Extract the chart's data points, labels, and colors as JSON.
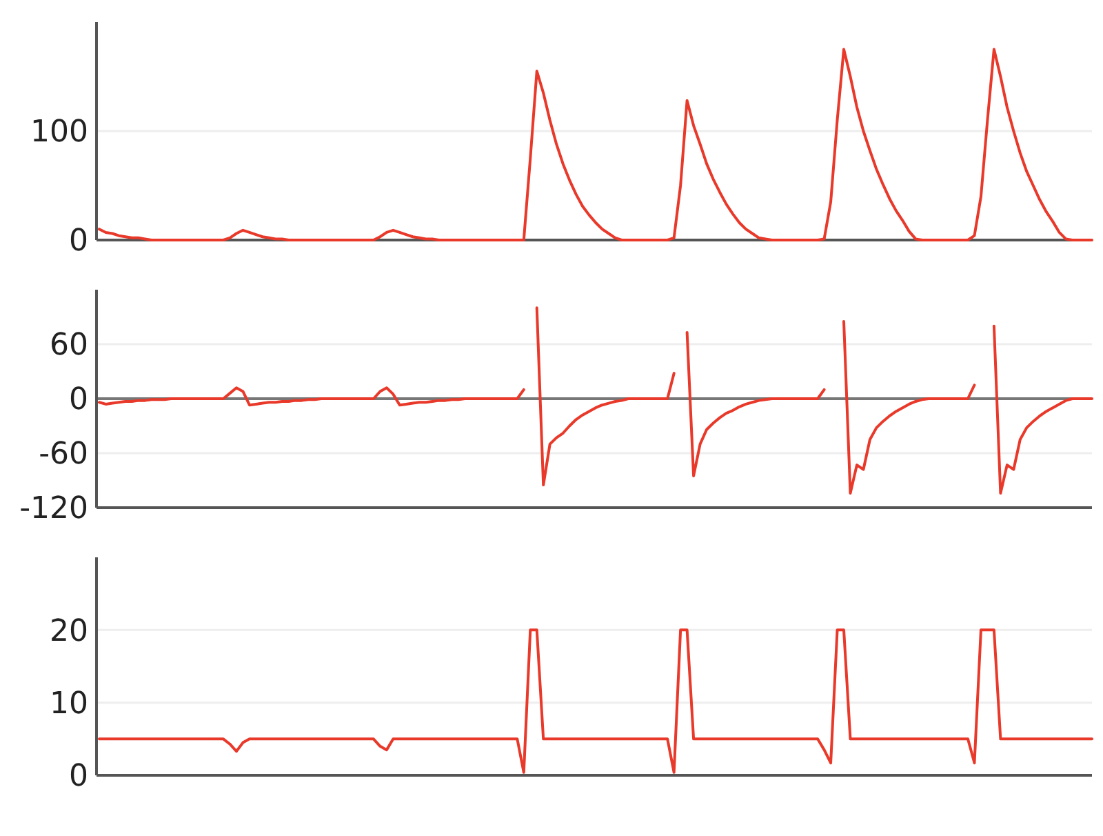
{
  "chart_data": [
    {
      "type": "line",
      "categories": [
        null,
        null,
        null,
        null,
        null,
        null,
        null,
        null,
        null,
        null,
        null,
        null,
        null,
        null,
        null,
        null,
        null,
        null,
        null,
        null,
        null,
        null,
        null,
        null,
        null,
        null,
        null,
        null,
        null,
        null,
        null,
        null,
        null,
        null,
        null,
        null,
        null,
        null,
        null,
        null,
        null,
        null,
        null,
        null,
        null,
        null,
        null,
        null,
        null,
        null,
        null,
        null,
        null,
        null,
        null,
        null,
        null,
        null,
        null,
        null,
        null,
        null,
        null,
        null,
        null,
        null,
        null,
        null,
        null,
        null,
        null,
        null,
        null,
        null,
        null,
        null,
        null,
        null,
        null,
        null,
        null,
        null,
        null,
        null,
        null,
        null,
        null,
        null,
        null,
        null,
        null,
        null,
        null,
        null,
        null,
        null,
        null,
        null,
        null,
        null,
        null,
        null,
        null,
        null,
        null,
        null,
        null,
        null,
        null,
        null,
        null,
        null,
        null,
        null,
        null,
        null,
        null,
        null,
        null,
        null,
        null,
        null,
        null,
        null,
        null,
        null,
        null,
        null,
        null,
        null,
        null,
        null,
        null,
        null,
        null,
        null,
        null,
        null,
        null,
        null,
        null,
        null,
        null,
        null,
        null,
        null,
        null,
        null,
        null,
        null,
        null,
        null,
        null
      ],
      "ylim": [
        0,
        200
      ],
      "yticks": [
        0,
        100
      ],
      "grid": "y",
      "series": [
        {
          "color": "#e8392a",
          "values": [
            10,
            7,
            6,
            4,
            3,
            2,
            2,
            1,
            0,
            0,
            0,
            0,
            0,
            0,
            0,
            0,
            0,
            0,
            0,
            0,
            2,
            6,
            9,
            7,
            5,
            3,
            2,
            1,
            1,
            0,
            0,
            0,
            0,
            0,
            0,
            0,
            0,
            0,
            0,
            0,
            0,
            0,
            0,
            3,
            7,
            9,
            7,
            5,
            3,
            2,
            1,
            1,
            0,
            0,
            0,
            0,
            0,
            0,
            0,
            0,
            0,
            0,
            0,
            0,
            0,
            0,
            75,
            155,
            135,
            110,
            88,
            70,
            55,
            42,
            31,
            23,
            16,
            10,
            6,
            2,
            0,
            0,
            0,
            0,
            0,
            0,
            0,
            0,
            2,
            50,
            128,
            105,
            88,
            70,
            56,
            44,
            33,
            24,
            16,
            10,
            6,
            2,
            1,
            0,
            0,
            0,
            0,
            0,
            0,
            0,
            0,
            1,
            35,
            110,
            175,
            150,
            122,
            100,
            82,
            65,
            51,
            38,
            27,
            18,
            8,
            1,
            0,
            0,
            0,
            0,
            0,
            0,
            0,
            0,
            4,
            40,
            110,
            175,
            150,
            122,
            100,
            80,
            63,
            50,
            37,
            26,
            17,
            7,
            1,
            0,
            0,
            0,
            0
          ]
        }
      ]
    },
    {
      "type": "line",
      "categories": [
        null,
        null,
        null,
        null,
        null,
        null,
        null,
        null,
        null,
        null,
        null,
        null,
        null,
        null,
        null,
        null,
        null,
        null,
        null,
        null,
        null,
        null,
        null,
        null,
        null,
        null,
        null,
        null,
        null,
        null,
        null,
        null,
        null,
        null,
        null,
        null,
        null,
        null,
        null,
        null,
        null,
        null,
        null,
        null,
        null,
        null,
        null,
        null,
        null,
        null,
        null,
        null,
        null,
        null,
        null,
        null,
        null,
        null,
        null,
        null,
        null,
        null,
        null,
        null,
        null,
        null,
        null,
        null,
        null,
        null,
        null,
        null,
        null,
        null,
        null,
        null,
        null,
        null,
        null,
        null,
        null,
        null,
        null,
        null,
        null,
        null,
        null,
        null,
        null,
        null,
        null,
        null,
        null,
        null,
        null,
        null,
        null,
        null,
        null,
        null,
        null,
        null,
        null,
        null,
        null,
        null,
        null,
        null,
        null,
        null,
        null,
        null,
        null,
        null,
        null,
        null,
        null,
        null,
        null,
        null,
        null,
        null,
        null,
        null,
        null,
        null,
        null,
        null,
        null,
        null,
        null,
        null,
        null,
        null,
        null,
        null,
        null,
        null,
        null,
        null,
        null,
        null,
        null,
        null,
        null,
        null,
        null,
        null,
        null,
        null,
        null,
        null,
        null
      ],
      "ylim": [
        -120,
        120
      ],
      "yticks": [
        -120,
        -60,
        0,
        60
      ],
      "grid": "y",
      "ref_lines": [
        {
          "axis": "y",
          "value": 0,
          "color": "#777777"
        }
      ],
      "series": [
        {
          "color": "#e8392a",
          "values": [
            -4,
            -6,
            -5,
            -4,
            -3,
            -3,
            -2,
            -2,
            -1,
            -1,
            -1,
            0,
            0,
            0,
            0,
            0,
            0,
            0,
            0,
            0,
            6,
            12,
            8,
            -7,
            -6,
            -5,
            -4,
            -4,
            -3,
            -3,
            -2,
            -2,
            -1,
            -1,
            0,
            0,
            0,
            0,
            0,
            0,
            0,
            0,
            0,
            8,
            12,
            5,
            -7,
            -6,
            -5,
            -4,
            -4,
            -3,
            -2,
            -2,
            -1,
            -1,
            0,
            0,
            0,
            0,
            0,
            0,
            0,
            0,
            0,
            10,
            null,
            100,
            -95,
            -50,
            -43,
            -38,
            -30,
            -23,
            -18,
            -14,
            -10,
            -7,
            -5,
            -3,
            -2,
            0,
            0,
            0,
            0,
            0,
            0,
            0,
            28,
            null,
            73,
            -85,
            -50,
            -34,
            -27,
            -21,
            -16,
            -13,
            -9,
            -6,
            -4,
            -2,
            -1,
            0,
            0,
            0,
            0,
            0,
            0,
            0,
            0,
            10,
            null,
            null,
            85,
            -104,
            -73,
            -78,
            -45,
            -32,
            -25,
            -19,
            -14,
            -10,
            -6,
            -3,
            -1,
            0,
            0,
            0,
            0,
            0,
            0,
            0,
            15,
            null,
            null,
            80,
            -104,
            -73,
            -78,
            -45,
            -32,
            -25,
            -19,
            -14,
            -10,
            -6,
            -2,
            0,
            0,
            0,
            0
          ]
        }
      ]
    },
    {
      "type": "line",
      "categories": [
        null,
        null,
        null,
        null,
        null,
        null,
        null,
        null,
        null,
        null,
        null,
        null,
        null,
        null,
        null,
        null,
        null,
        null,
        null,
        null,
        null,
        null,
        null,
        null,
        null,
        null,
        null,
        null,
        null,
        null,
        null,
        null,
        null,
        null,
        null,
        null,
        null,
        null,
        null,
        null,
        null,
        null,
        null,
        null,
        null,
        null,
        null,
        null,
        null,
        null,
        null,
        null,
        null,
        null,
        null,
        null,
        null,
        null,
        null,
        null,
        null,
        null,
        null,
        null,
        null,
        null,
        null,
        null,
        null,
        null,
        null,
        null,
        null,
        null,
        null,
        null,
        null,
        null,
        null,
        null,
        null,
        null,
        null,
        null,
        null,
        null,
        null,
        null,
        null,
        null,
        null,
        null,
        null,
        null,
        null,
        null,
        null,
        null,
        null,
        null,
        null,
        null,
        null,
        null,
        null,
        null,
        null,
        null,
        null,
        null,
        null,
        null,
        null,
        null,
        null,
        null,
        null,
        null,
        null,
        null,
        null,
        null,
        null,
        null,
        null,
        null,
        null,
        null,
        null,
        null,
        null,
        null,
        null,
        null,
        null,
        null,
        null,
        null,
        null,
        null,
        null,
        null,
        null,
        null,
        null,
        null,
        null,
        null,
        null,
        null,
        null,
        null,
        null
      ],
      "ylim": [
        0,
        30
      ],
      "yticks": [
        0,
        10,
        20
      ],
      "grid": "y",
      "series": [
        {
          "color": "#e8392a",
          "values": [
            5,
            5,
            5,
            5,
            5,
            5,
            5,
            5,
            5,
            5,
            5,
            5,
            5,
            5,
            5,
            5,
            5,
            5,
            5,
            5,
            4.3,
            3.3,
            4.5,
            5,
            5,
            5,
            5,
            5,
            5,
            5,
            5,
            5,
            5,
            5,
            5,
            5,
            5,
            5,
            5,
            5,
            5,
            5,
            5,
            4,
            3.5,
            5,
            5,
            5,
            5,
            5,
            5,
            5,
            5,
            5,
            5,
            5,
            5,
            5,
            5,
            5,
            5,
            5,
            5,
            5,
            5,
            0.4,
            20,
            20,
            5,
            5,
            5,
            5,
            5,
            5,
            5,
            5,
            5,
            5,
            5,
            5,
            5,
            5,
            5,
            5,
            5,
            5,
            5,
            5,
            0.4,
            20,
            20,
            5,
            5,
            5,
            5,
            5,
            5,
            5,
            5,
            5,
            5,
            5,
            5,
            5,
            5,
            5,
            5,
            5,
            5,
            5,
            5,
            3.5,
            1.7,
            20,
            20,
            5,
            5,
            5,
            5,
            5,
            5,
            5,
            5,
            5,
            5,
            5,
            5,
            5,
            5,
            5,
            5,
            5,
            5,
            5,
            1.7,
            20,
            20,
            20,
            5,
            5,
            5,
            5,
            5,
            5,
            5,
            5,
            5,
            5,
            5,
            5,
            5,
            5,
            5
          ]
        }
      ]
    }
  ]
}
